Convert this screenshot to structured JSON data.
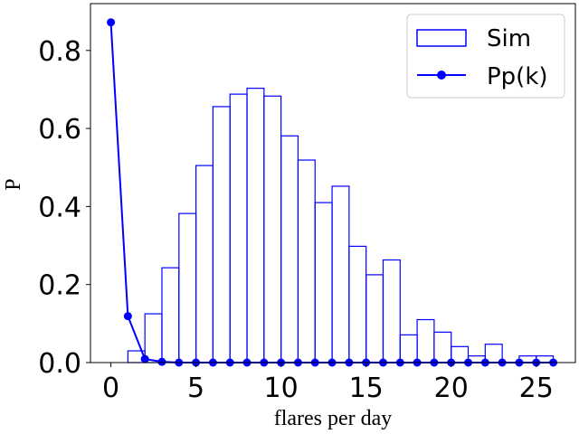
{
  "chart_data": {
    "type": "bar",
    "xlabel": "flares per day",
    "ylabel": "P",
    "xlim": [
      -1.2,
      27.3
    ],
    "ylim": [
      0,
      0.92
    ],
    "x_ticks": [
      0,
      5,
      10,
      15,
      20,
      25
    ],
    "x_tick_labels": [
      "0",
      "5",
      "10",
      "15",
      "20",
      "25"
    ],
    "y_ticks": [
      0.0,
      0.2,
      0.4,
      0.6,
      0.8
    ],
    "y_tick_labels": [
      "0.0",
      "0.2",
      "0.4",
      "0.6",
      "0.8"
    ],
    "legend_position": "top-right",
    "colors": {
      "series": "#0000ff"
    },
    "series": [
      {
        "name": "Sim",
        "type": "histogram",
        "bin_width": 1,
        "bin_left_edges": [
          1,
          2,
          3,
          4,
          5,
          6,
          7,
          8,
          9,
          10,
          11,
          12,
          13,
          14,
          15,
          16,
          17,
          18,
          19,
          20,
          21,
          22,
          24,
          25
        ],
        "values": [
          0.03,
          0.125,
          0.243,
          0.382,
          0.505,
          0.656,
          0.688,
          0.703,
          0.683,
          0.581,
          0.519,
          0.41,
          0.452,
          0.298,
          0.225,
          0.263,
          0.071,
          0.11,
          0.078,
          0.041,
          0.017,
          0.047,
          0.017,
          0.017
        ]
      },
      {
        "name": "Pp(k)",
        "type": "line",
        "marker": "circle",
        "x": [
          0,
          1,
          2,
          3,
          4,
          5,
          6,
          7,
          8,
          9,
          10,
          11,
          12,
          13,
          14,
          15,
          16,
          17,
          18,
          19,
          20,
          21,
          22,
          23,
          24,
          25,
          26
        ],
        "values": [
          0.872,
          0.119,
          0.009,
          0.002,
          0,
          0,
          0,
          0,
          0,
          0,
          0,
          0,
          0,
          0,
          0,
          0,
          0,
          0,
          0,
          0,
          0,
          0,
          0,
          0,
          0,
          0,
          0
        ]
      }
    ]
  }
}
